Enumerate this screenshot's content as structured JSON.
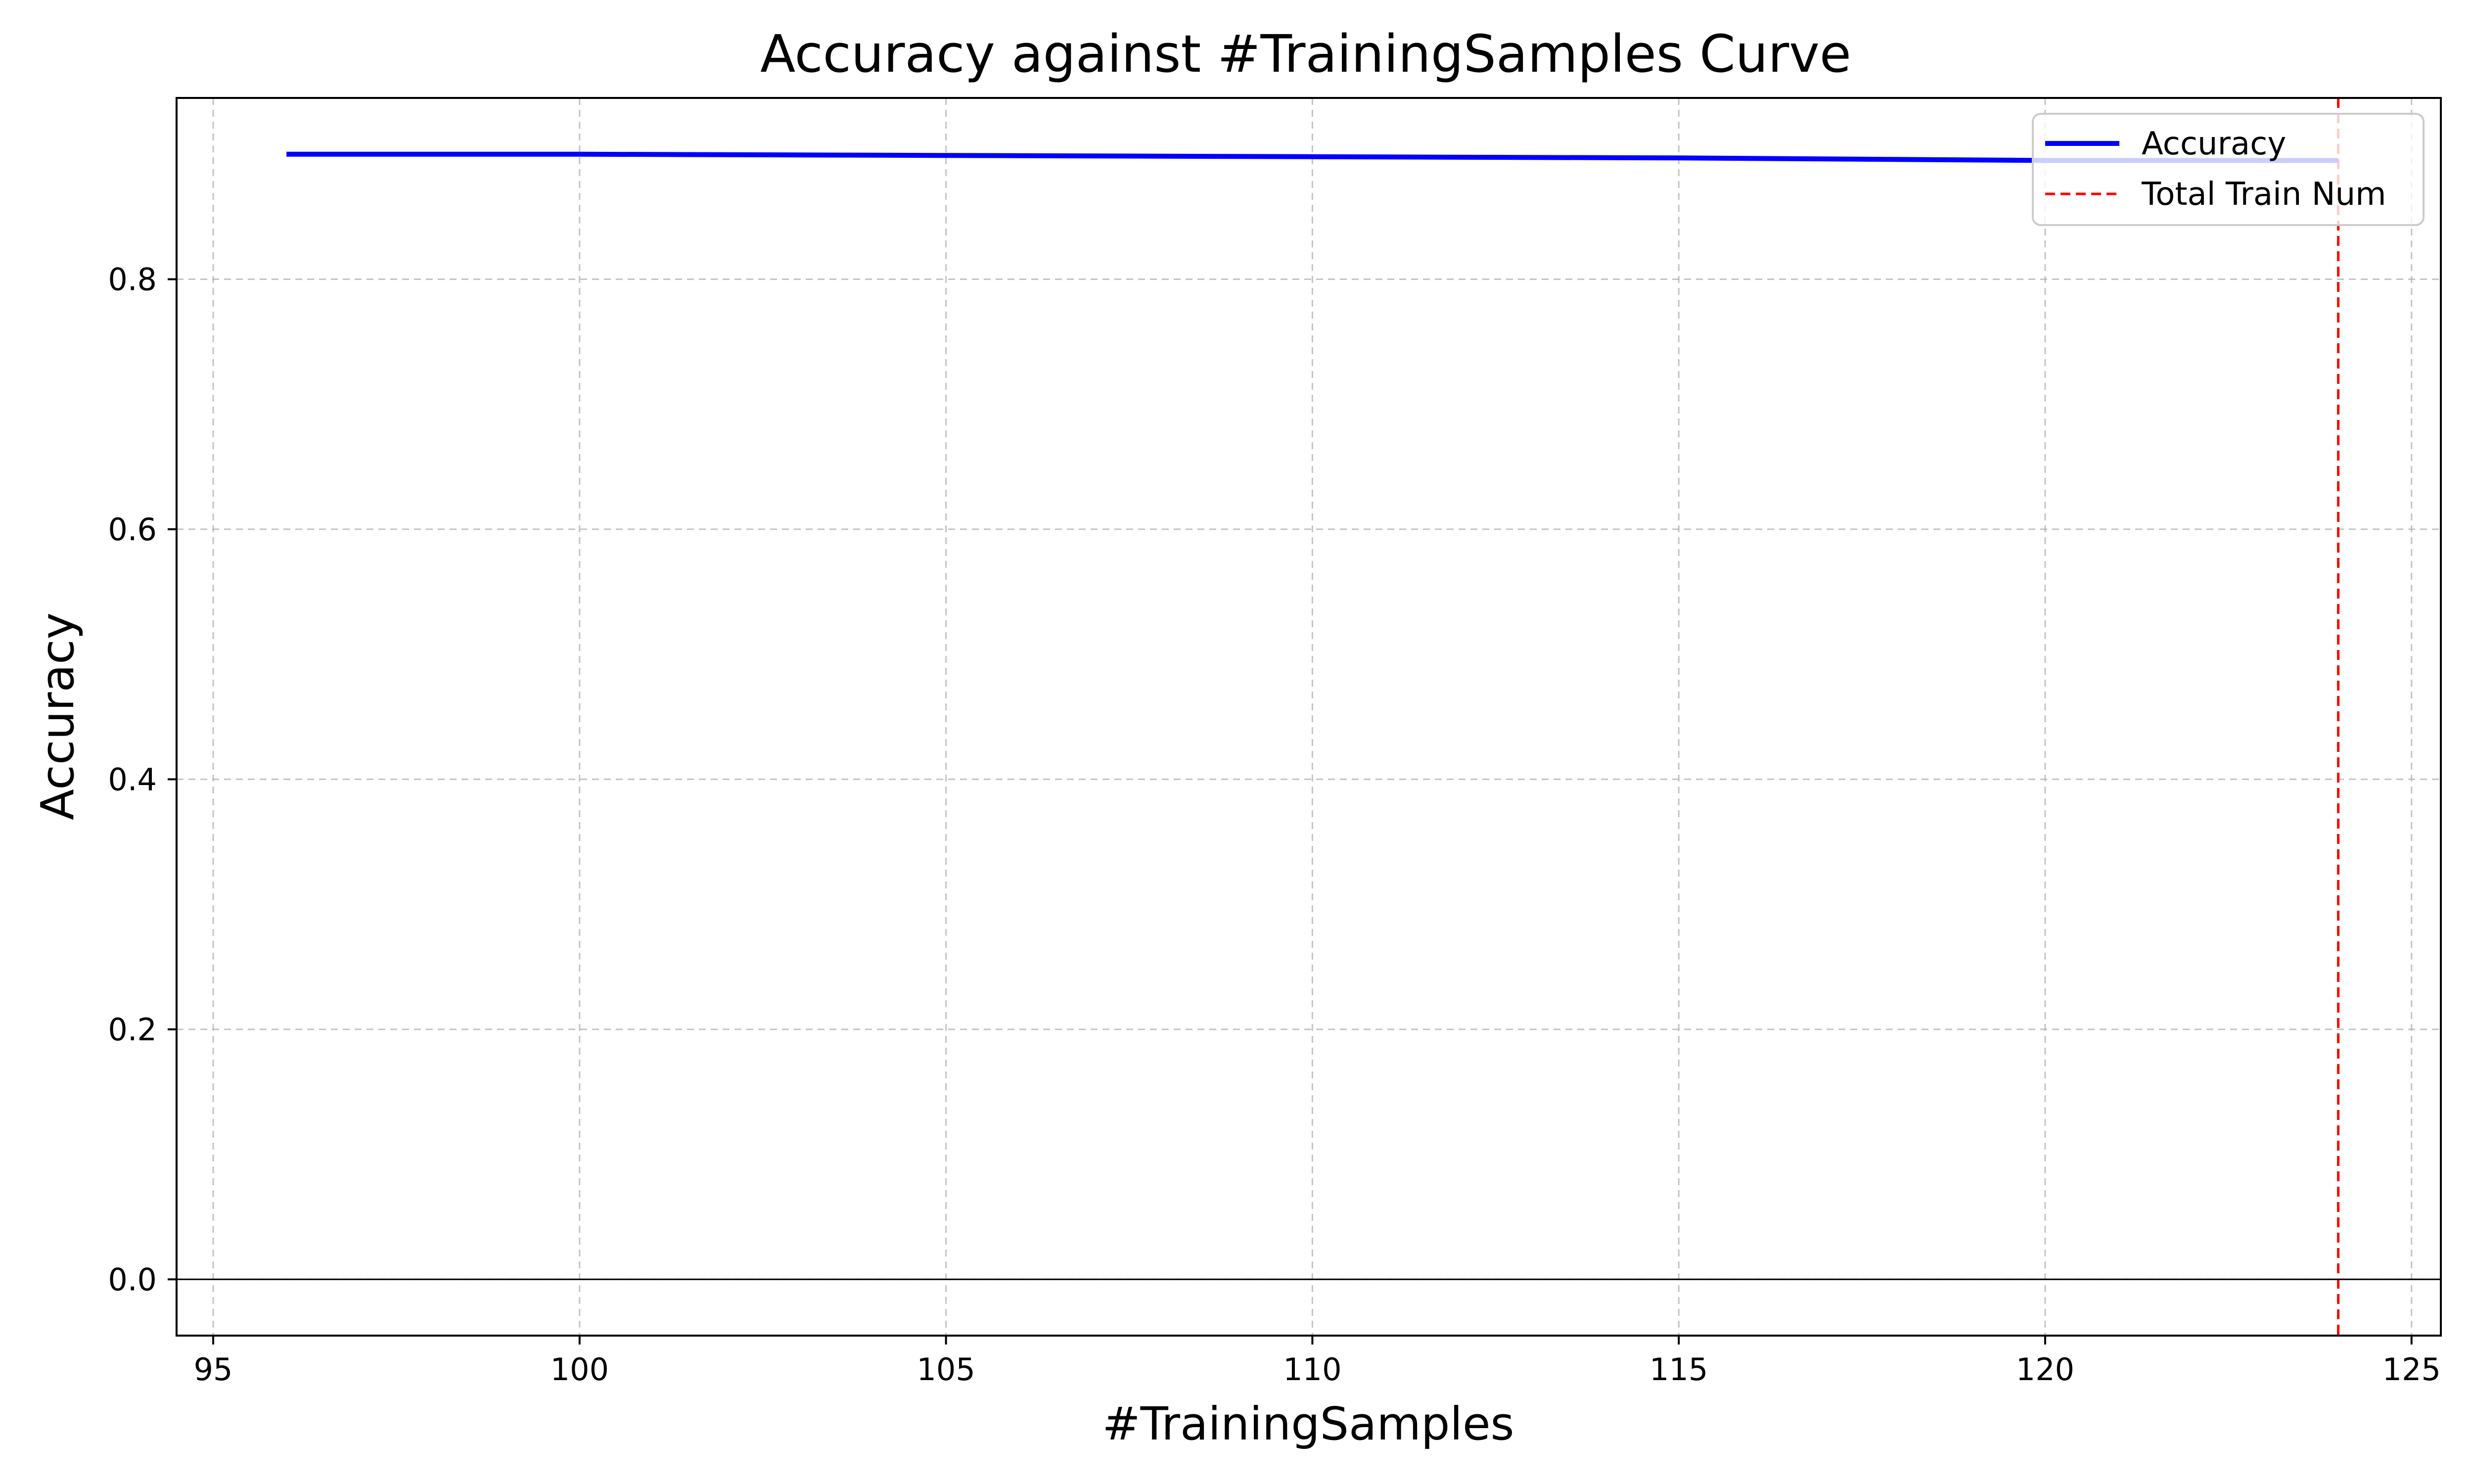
{
  "chart_data": {
    "type": "line",
    "title": "Accuracy against #TrainingSamples Curve",
    "xlabel": "#TrainingSamples",
    "ylabel": "Accuracy",
    "xlim": [
      94.5,
      125.4
    ],
    "ylim": [
      -0.045,
      0.945
    ],
    "x_ticks": [
      95,
      100,
      105,
      110,
      115,
      120,
      125
    ],
    "x_tick_labels": [
      "95",
      "100",
      "105",
      "110",
      "115",
      "120",
      "125"
    ],
    "y_ticks": [
      0.0,
      0.2,
      0.4,
      0.6,
      0.8
    ],
    "y_tick_labels": [
      "0.0",
      "0.2",
      "0.4",
      "0.6",
      "0.8"
    ],
    "grid": true,
    "grid_style": "dashed",
    "legend_position": "top-right",
    "series": [
      {
        "name": "Accuracy",
        "color": "#0000ff",
        "style": "solid",
        "x": [
          96,
          100,
          105,
          110,
          115,
          120,
          124
        ],
        "y": [
          0.9,
          0.9,
          0.899,
          0.898,
          0.897,
          0.895,
          0.895
        ]
      }
    ],
    "reference_lines": [
      {
        "name": "Total Train Num",
        "orientation": "vertical",
        "x": 124,
        "color": "#ff0000",
        "style": "dashed"
      },
      {
        "orientation": "horizontal",
        "y": 0,
        "color": "#000000",
        "style": "solid"
      }
    ]
  }
}
